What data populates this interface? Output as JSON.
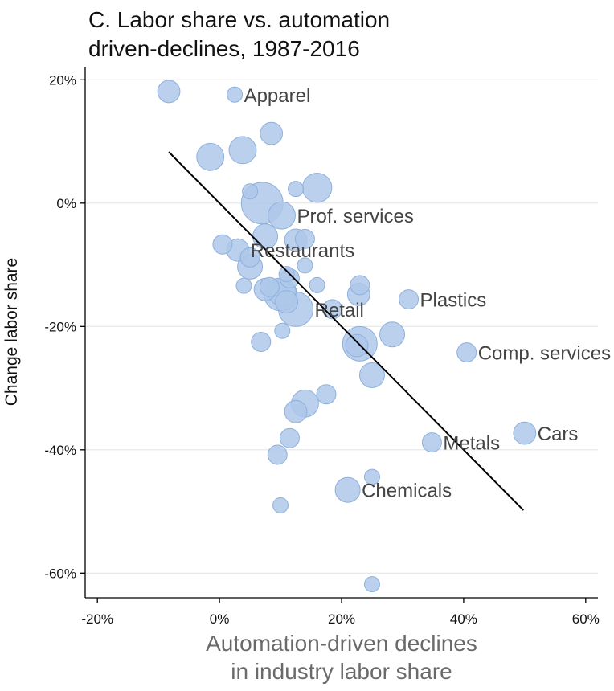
{
  "chart_data": {
    "type": "scatter",
    "title_lines": [
      "C. Labor share vs. automation",
      "driven-declines, 1987-2016"
    ],
    "xlabel_lines": [
      "Automation-driven declines",
      "in industry labor share"
    ],
    "ylabel": "Change labor share",
    "xlim": [
      -22,
      62
    ],
    "ylim": [
      -64,
      22
    ],
    "x_ticks": [
      -20,
      0,
      20,
      40,
      60
    ],
    "x_tick_labels": [
      "-20%",
      "0%",
      "20%",
      "40%",
      "60%"
    ],
    "y_ticks": [
      20,
      0,
      -20,
      -40,
      -60
    ],
    "y_tick_labels": [
      "20%",
      "0%",
      "-20%",
      "-40%",
      "-60%"
    ],
    "grid": "horizontal",
    "colors": {
      "point_fill": "#aec8ea",
      "point_stroke": "#8fb0dc",
      "fit_line": "#000000",
      "grid": "#e6e6e6"
    },
    "points": [
      {
        "x": -8.3,
        "y": 18.1,
        "size": 3
      },
      {
        "x": 2.5,
        "y": 17.6,
        "size": 1,
        "label": "Apparel"
      },
      {
        "x": 8.5,
        "y": 11.3,
        "size": 3
      },
      {
        "x": -1.5,
        "y": 7.5,
        "size": 5
      },
      {
        "x": 3.8,
        "y": 8.6,
        "size": 5
      },
      {
        "x": 16.0,
        "y": 2.5,
        "size": 6
      },
      {
        "x": 12.5,
        "y": 2.3,
        "size": 1
      },
      {
        "x": 5.0,
        "y": 1.9,
        "size": 1
      },
      {
        "x": 7.0,
        "y": 0.0,
        "size": 14
      },
      {
        "x": 10.2,
        "y": -2.0,
        "size": 5,
        "label": "Prof. services"
      },
      {
        "x": 7.5,
        "y": -5.4,
        "size": 4
      },
      {
        "x": 12.5,
        "y": -6.0,
        "size": 3
      },
      {
        "x": 14.0,
        "y": -5.8,
        "size": 2
      },
      {
        "x": 0.5,
        "y": -6.7,
        "size": 2
      },
      {
        "x": 3.0,
        "y": -7.6,
        "size": 3,
        "label": "Restaurants"
      },
      {
        "x": 5.0,
        "y": -8.8,
        "size": 2
      },
      {
        "x": 5.0,
        "y": -10.3,
        "size": 4
      },
      {
        "x": 14.0,
        "y": -10.1,
        "size": 1
      },
      {
        "x": 11.0,
        "y": -11.5,
        "size": 1
      },
      {
        "x": 11.5,
        "y": -12.2,
        "size": 2
      },
      {
        "x": 4.0,
        "y": -13.4,
        "size": 1
      },
      {
        "x": 16.0,
        "y": -13.3,
        "size": 1
      },
      {
        "x": 23.0,
        "y": -13.3,
        "size": 2
      },
      {
        "x": 7.5,
        "y": -14.0,
        "size": 3
      },
      {
        "x": 8.2,
        "y": -13.6,
        "size": 2
      },
      {
        "x": 10.0,
        "y": -14.8,
        "size": 8
      },
      {
        "x": 10.3,
        "y": -14.5,
        "size": 5
      },
      {
        "x": 22.8,
        "y": -14.8,
        "size": 3
      },
      {
        "x": 11.0,
        "y": -16.0,
        "size": 3
      },
      {
        "x": 31.0,
        "y": -15.6,
        "size": 2,
        "label": "Plastics"
      },
      {
        "x": 12.5,
        "y": -17.2,
        "size": 9,
        "label": "Retail"
      },
      {
        "x": 18.5,
        "y": -17.2,
        "size": 2
      },
      {
        "x": 10.3,
        "y": -20.7,
        "size": 1
      },
      {
        "x": 28.3,
        "y": -21.3,
        "size": 4
      },
      {
        "x": 6.8,
        "y": -22.5,
        "size": 2
      },
      {
        "x": 22.5,
        "y": -23.1,
        "size": 3
      },
      {
        "x": 23.0,
        "y": -22.8,
        "size": 9
      },
      {
        "x": 40.5,
        "y": -24.2,
        "size": 2,
        "label": "Comp. services"
      },
      {
        "x": 25.0,
        "y": -27.9,
        "size": 4
      },
      {
        "x": 17.5,
        "y": -31.0,
        "size": 2
      },
      {
        "x": 14.0,
        "y": -32.5,
        "size": 5
      },
      {
        "x": 12.5,
        "y": -33.8,
        "size": 3
      },
      {
        "x": 11.5,
        "y": -38.1,
        "size": 2
      },
      {
        "x": 50.0,
        "y": -37.3,
        "size": 3,
        "label": "Cars"
      },
      {
        "x": 34.8,
        "y": -38.8,
        "size": 2,
        "label": "Metals"
      },
      {
        "x": 9.5,
        "y": -40.8,
        "size": 2
      },
      {
        "x": 25.0,
        "y": -44.4,
        "size": 1
      },
      {
        "x": 21.0,
        "y": -46.5,
        "size": 4,
        "label": "Chemicals"
      },
      {
        "x": 10.0,
        "y": -49.0,
        "size": 1
      },
      {
        "x": 25.0,
        "y": -61.8,
        "size": 1
      }
    ],
    "fit_line": {
      "x": [
        -8.3,
        49.8
      ],
      "y": [
        8.3,
        -49.8
      ]
    }
  }
}
